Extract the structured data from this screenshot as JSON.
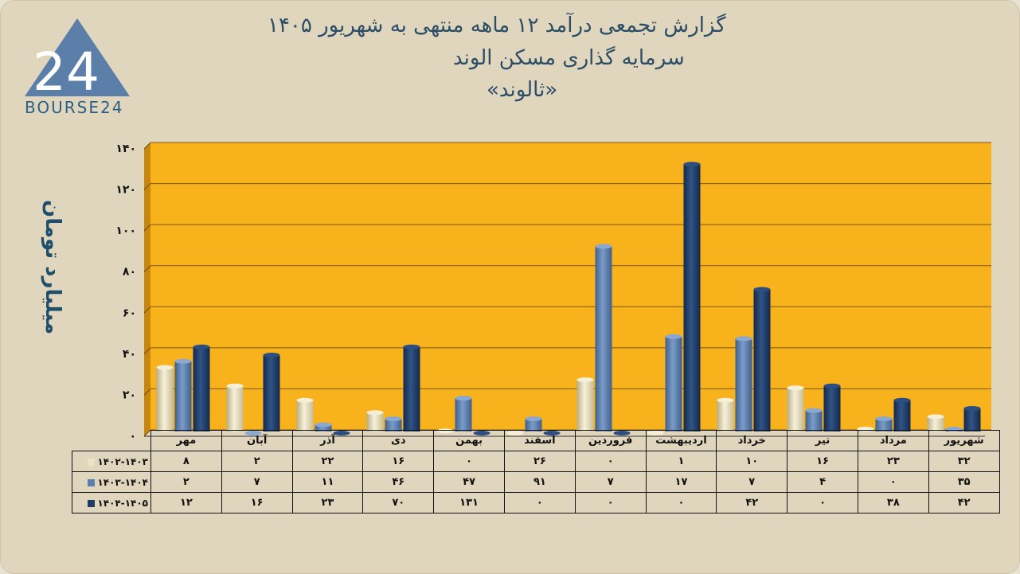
{
  "title_lines": [
    "گزارش تجمعی درآمد ۱۲ ماهه منتهی به شهریور ۱۴۰۵",
    "سرمایه گذاری مسکن الوند",
    "«ثالوند»"
  ],
  "logo": {
    "numeral": "24",
    "text": "BOURSE24"
  },
  "colors": {
    "plot_bg": "#f8b21c",
    "series": [
      "#ebe3c2",
      "#5b7fae",
      "#1f3c66"
    ]
  },
  "chart_data": {
    "type": "bar",
    "ylabel": "میلیارد تومان",
    "ylim": [
      0,
      140
    ],
    "yticks": [
      0,
      20,
      40,
      60,
      80,
      100,
      120,
      140
    ],
    "ytick_labels": [
      "۰",
      "۲۰",
      "۴۰",
      "۶۰",
      "۸۰",
      "۱۰۰",
      "۱۲۰",
      "۱۴۰"
    ],
    "grid": true,
    "categories": [
      "مهر",
      "آبان",
      "آذر",
      "دی",
      "بهمن",
      "اسفند",
      "فروردین",
      "اردیبهشت",
      "خرداد",
      "تیر",
      "مرداد",
      "شهریور"
    ],
    "series": [
      {
        "name": "۱۴۰۲-۱۴۰۳",
        "values": [
          8,
          2,
          22,
          16,
          0,
          26,
          0,
          1,
          10,
          16,
          23,
          32
        ],
        "labels": [
          "۸",
          "۲",
          "۲۲",
          "۱۶",
          "۰",
          "۲۶",
          "۰",
          "۱",
          "۱۰",
          "۱۶",
          "۲۳",
          "۳۲"
        ]
      },
      {
        "name": "۱۴۰۳-۱۴۰۴",
        "values": [
          2,
          7,
          11,
          46,
          47,
          91,
          7,
          17,
          7,
          4,
          0,
          35
        ],
        "labels": [
          "۲",
          "۷",
          "۱۱",
          "۴۶",
          "۴۷",
          "۹۱",
          "۷",
          "۱۷",
          "۷",
          "۴",
          "۰",
          "۳۵"
        ]
      },
      {
        "name": "۱۴۰۴-۱۴۰۵",
        "values": [
          12,
          16,
          23,
          70,
          131,
          0,
          0,
          0,
          42,
          0,
          38,
          42
        ],
        "labels": [
          "۱۲",
          "۱۶",
          "۲۳",
          "۷۰",
          "۱۳۱",
          "۰",
          "۰",
          "۰",
          "۴۲",
          "۰",
          "۳۸",
          "۴۲"
        ]
      }
    ]
  }
}
